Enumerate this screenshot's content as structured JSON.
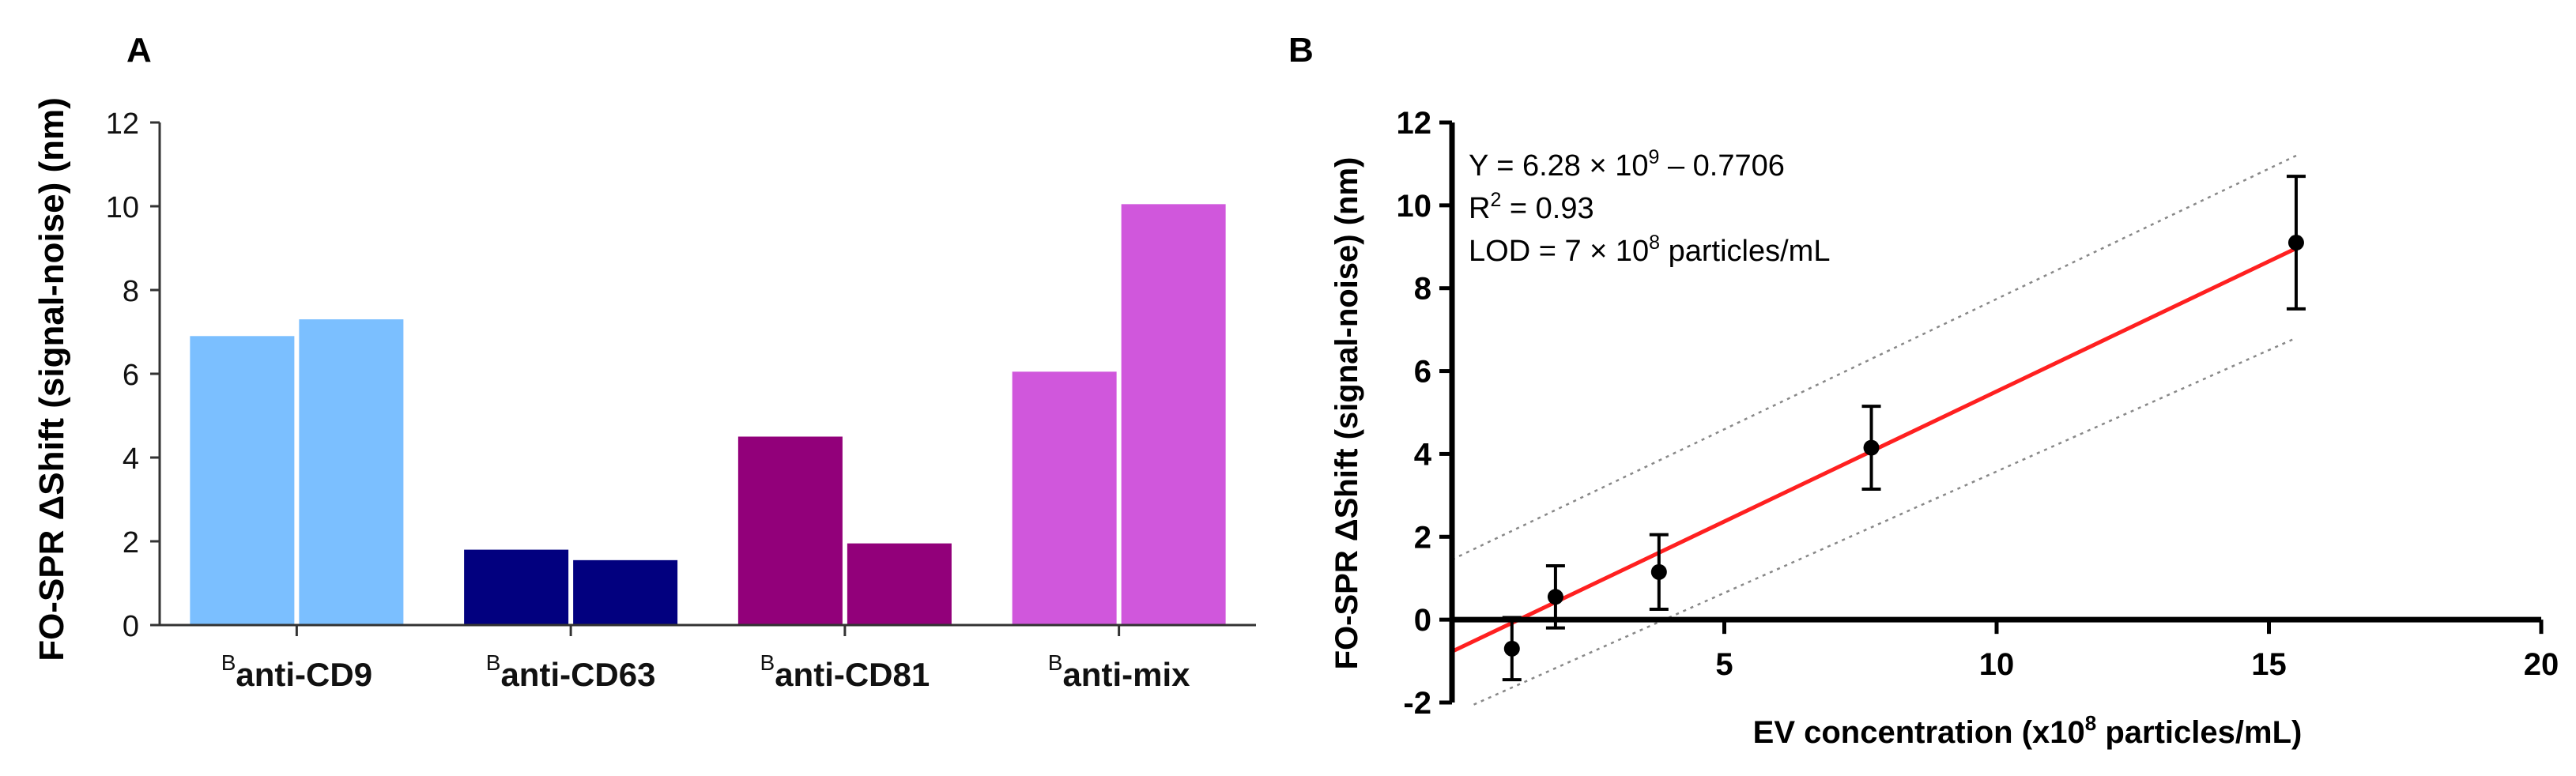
{
  "chart_data": [
    {
      "panel_label": "A",
      "type": "bar",
      "ylabel": "FO-SPR ΔShift (signal-noise) (nm)",
      "xlabel": "",
      "ylim": [
        0,
        12
      ],
      "yticks": [
        "0",
        "2",
        "4",
        "6",
        "8",
        "10",
        "12"
      ],
      "categories": [
        {
          "prefix": "B",
          "label": "anti-CD9",
          "values": [
            6.9,
            7.3
          ],
          "color": "#7bbfff"
        },
        {
          "prefix": "B",
          "label": "anti-CD63",
          "values": [
            1.8,
            1.55
          ],
          "color": "#02007f"
        },
        {
          "prefix": "B",
          "label": "anti-CD81",
          "values": [
            4.5,
            1.95
          ],
          "color": "#92007a"
        },
        {
          "prefix": "B",
          "label": "anti-mix",
          "values": [
            6.05,
            10.05
          ],
          "color": "#d057dc"
        }
      ]
    },
    {
      "panel_label": "B",
      "type": "scatter",
      "xlabel": "EV concentration (x10",
      "xlabel_sup": "8",
      "xlabel_tail": " particles/mL)",
      "ylabel": "FO-SPR ΔShift (signal-noise) (nm)",
      "xlim": [
        0,
        20
      ],
      "ylim": [
        -2,
        12
      ],
      "xticks": [
        "5",
        "10",
        "15",
        "20"
      ],
      "yticks": [
        "-2",
        "0",
        "2",
        "4",
        "6",
        "8",
        "10",
        "12"
      ],
      "points": [
        {
          "x": 1.1,
          "y": -0.7,
          "err": 0.75
        },
        {
          "x": 1.9,
          "y": 0.55,
          "err": 0.75
        },
        {
          "x": 3.8,
          "y": 1.15,
          "err": 0.9
        },
        {
          "x": 7.7,
          "y": 4.15,
          "err": 1.0
        },
        {
          "x": 15.5,
          "y": 9.1,
          "err": 1.6
        }
      ],
      "fit": {
        "slope": 0.628,
        "intercept": -0.7706,
        "color": "#ff2020",
        "x_range": [
          0,
          15.5
        ]
      },
      "ci_upper": {
        "x": [
          0,
          15.5
        ],
        "y": [
          1.45,
          11.2
        ]
      },
      "ci_lower": {
        "x": [
          0.4,
          15.5
        ],
        "y": [
          -2.05,
          6.8
        ]
      },
      "annotations": {
        "line1_pre": "Y = 6.28 × 10",
        "line1_sup": "9",
        "line1_post": " – 0.7706",
        "line2_pre": "R",
        "line2_sup": "2",
        "line2_post": " = 0.93",
        "line3_pre": "LOD = 7 × 10",
        "line3_sup": "8",
        "line3_post": " particles/mL"
      }
    }
  ]
}
